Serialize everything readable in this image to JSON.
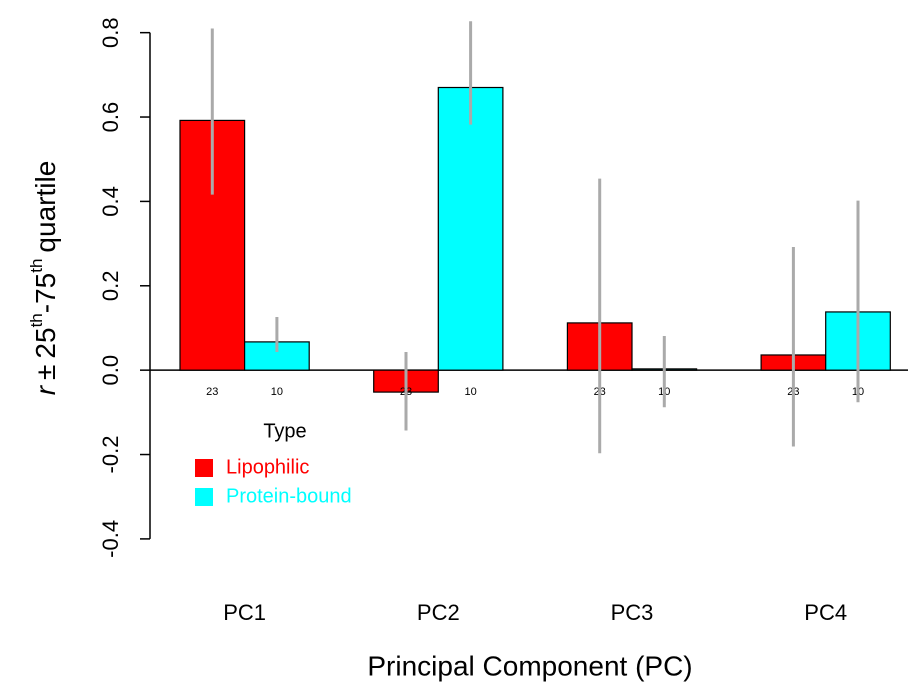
{
  "chart_data": {
    "type": "bar",
    "categories": [
      "PC1",
      "PC2",
      "PC3",
      "PC4"
    ],
    "series": [
      {
        "name": "Lipophilic",
        "color": "#ff0000",
        "values": [
          0.592,
          -0.052,
          0.112,
          0.036
        ],
        "low": [
          0.416,
          -0.143,
          -0.197,
          -0.181
        ],
        "high": [
          0.81,
          0.043,
          0.454,
          0.292
        ],
        "counts": [
          "23",
          "23",
          "23",
          "23"
        ]
      },
      {
        "name": "Protein-bound",
        "color": "#00ffff",
        "values": [
          0.067,
          0.67,
          0.003,
          0.138
        ],
        "low": [
          0.043,
          0.582,
          -0.088,
          -0.076
        ],
        "high": [
          0.126,
          0.827,
          0.081,
          0.402
        ],
        "counts": [
          "10",
          "10",
          "10",
          "10"
        ]
      }
    ],
    "error_color": "#aaaaaa",
    "ylim": [
      -0.45,
      0.83
    ],
    "yticks": [
      -0.4,
      -0.2,
      {
        "value": 0,
        "label": "0.0"
      },
      0.2,
      0.4,
      0.6,
      0.8
    ],
    "xlabel": "Principal Component (PC)",
    "ylabel": {
      "symbol": "r",
      "op": "±",
      "from": "25",
      "from_sup": "th",
      "sep": "-",
      "to": "75",
      "to_sup": "th",
      "rest": "quartile"
    },
    "legend_title": "Type",
    "legend_position": "lower-left"
  }
}
